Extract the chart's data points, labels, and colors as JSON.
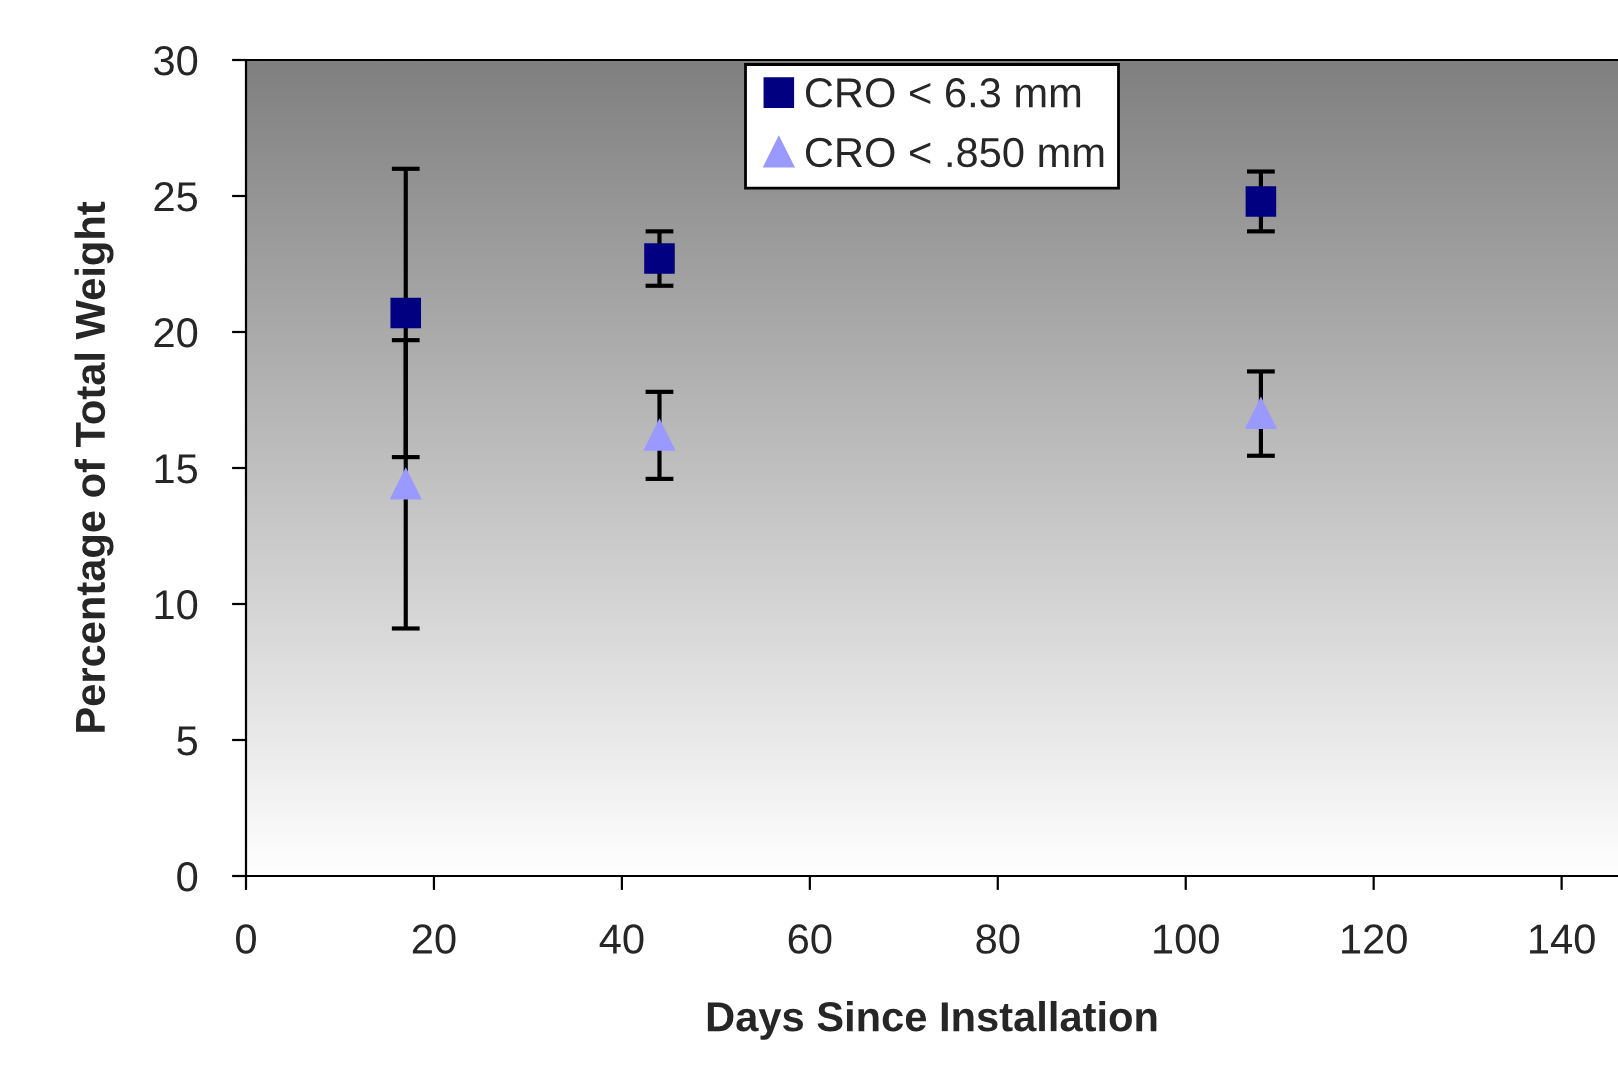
{
  "chart_data": {
    "type": "scatter",
    "xlabel": "Days Since Installation",
    "ylabel": "Percentage of Total Weight",
    "xlim": [
      0,
      146
    ],
    "xticks": [
      0,
      20,
      40,
      60,
      80,
      100,
      120,
      140
    ],
    "ylim": [
      0,
      30
    ],
    "yticks": [
      0,
      5,
      10,
      15,
      20,
      25,
      30
    ],
    "x": [
      17,
      44,
      108
    ],
    "legend": "top",
    "grid": false,
    "series": [
      {
        "name": "CRO < 6.3 mm",
        "color": "#000080",
        "marker": "square",
        "values": [
          20.7,
          22.7,
          24.8
        ],
        "errors": [
          5.3,
          1.0,
          1.1
        ]
      },
      {
        "name": "CRO < .850 mm",
        "color": "#9999ff",
        "marker": "triangle",
        "values": [
          14.4,
          16.2,
          17.0
        ],
        "errors": [
          5.3,
          1.6,
          1.55
        ]
      }
    ]
  }
}
